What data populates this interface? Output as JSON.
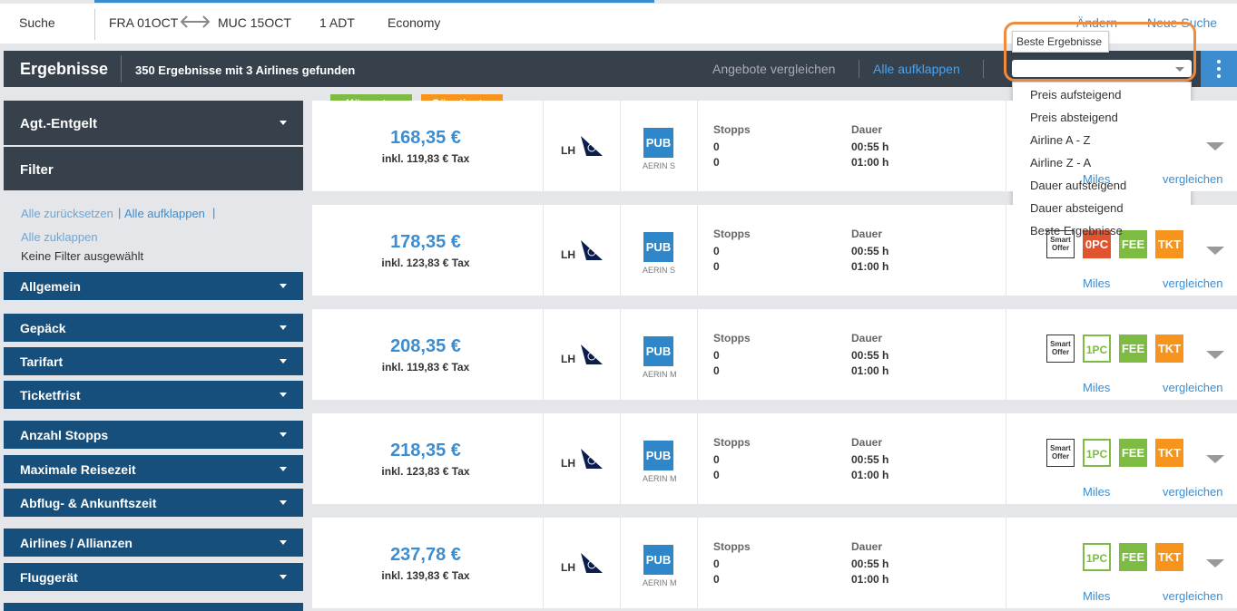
{
  "search_bar": {
    "label": "Suche",
    "origin": "FRA 01OCT",
    "destination": "MUC 15OCT",
    "passengers": "1 ADT",
    "cabin": "Economy",
    "change": "Ändern",
    "new_search": "Neue Suche"
  },
  "results_bar": {
    "title": "Ergebnisse",
    "summary": "350 Ergebnisse mit 3 Airlines gefunden",
    "compare": "Angebote vergleichen",
    "expand_all": "Alle aufklappen"
  },
  "sort": {
    "tooltip": "Beste Ergebnisse",
    "options": [
      "Preis aufsteigend",
      "Preis absteigend",
      "Airline A - Z",
      "Airline Z - A",
      "Dauer aufsteigend",
      "Dauer absteigend",
      "Beste Ergebnisse"
    ]
  },
  "sidebar": {
    "agent_fee": "Agt.-Entgelt",
    "filter": "Filter",
    "reset_all": "Alle zurücksetzen",
    "expand_all": "Alle aufklappen",
    "collapse_all": "Alle zuklappen",
    "no_filter": "Keine Filter ausgewählt",
    "groups": [
      "Allgemein",
      "Gepäck",
      "Tarifart",
      "Ticketfrist",
      "Anzahl Stopps",
      "Maximale Reisezeit",
      "Abflug- & Ankunftszeit",
      "Airlines / Allianzen",
      "Fluggerät"
    ]
  },
  "badges": {
    "shortest": "Kürzester",
    "cheapest": "Günstigster"
  },
  "results": [
    {
      "price": "168,35 €",
      "tax": "inkl. 119,83 € Tax",
      "airline": "LH",
      "fare_type": "PUB",
      "fare_name": "AERIN S",
      "stops_label": "Stopps",
      "stops": [
        "0",
        "0"
      ],
      "duration_label": "Dauer",
      "durations": [
        "00:55 h",
        "01:00 h"
      ],
      "icons": [],
      "miles": "Miles",
      "compare": "vergleichen"
    },
    {
      "price": "178,35 €",
      "tax": "inkl. 123,83 € Tax",
      "airline": "LH",
      "fare_type": "PUB",
      "fare_name": "AERIN S",
      "stops_label": "Stopps",
      "stops": [
        "0",
        "0"
      ],
      "duration_label": "Dauer",
      "durations": [
        "00:55 h",
        "01:00 h"
      ],
      "icons": [
        {
          "label": "Smart Offer",
          "color": "#333333",
          "filled": false
        },
        {
          "label": "0PC",
          "color": "#e0552f",
          "filled": true
        },
        {
          "label": "FEE",
          "color": "#7dbb42",
          "filled": true
        },
        {
          "label": "TKT",
          "color": "#f7941d",
          "filled": true
        }
      ],
      "miles": "Miles",
      "compare": "vergleichen"
    },
    {
      "price": "208,35 €",
      "tax": "inkl. 119,83 € Tax",
      "airline": "LH",
      "fare_type": "PUB",
      "fare_name": "AERIN M",
      "stops_label": "Stopps",
      "stops": [
        "0",
        "0"
      ],
      "duration_label": "Dauer",
      "durations": [
        "00:55 h",
        "01:00 h"
      ],
      "icons": [
        {
          "label": "Smart Offer",
          "color": "#333333",
          "filled": false
        },
        {
          "label": "1PC",
          "color": "#7dbb42",
          "filled": false
        },
        {
          "label": "FEE",
          "color": "#7dbb42",
          "filled": true
        },
        {
          "label": "TKT",
          "color": "#f7941d",
          "filled": true
        }
      ],
      "miles": "Miles",
      "compare": "vergleichen"
    },
    {
      "price": "218,35 €",
      "tax": "inkl. 123,83 € Tax",
      "airline": "LH",
      "fare_type": "PUB",
      "fare_name": "AERIN M",
      "stops_label": "Stopps",
      "stops": [
        "0",
        "0"
      ],
      "duration_label": "Dauer",
      "durations": [
        "00:55 h",
        "01:00 h"
      ],
      "icons": [
        {
          "label": "Smart Offer",
          "color": "#333333",
          "filled": false
        },
        {
          "label": "1PC",
          "color": "#7dbb42",
          "filled": false
        },
        {
          "label": "FEE",
          "color": "#7dbb42",
          "filled": true
        },
        {
          "label": "TKT",
          "color": "#f7941d",
          "filled": true
        }
      ],
      "miles": "Miles",
      "compare": "vergleichen"
    },
    {
      "price": "237,78 €",
      "tax": "inkl. 139,83 € Tax",
      "airline": "LH",
      "fare_type": "PUB",
      "fare_name": "AERIN M",
      "stops_label": "Stopps",
      "stops": [
        "0",
        "0"
      ],
      "duration_label": "Dauer",
      "durations": [
        "00:55 h",
        "01:00 h"
      ],
      "icons": [
        {
          "label": "1PC",
          "color": "#7dbb42",
          "filled": false
        },
        {
          "label": "FEE",
          "color": "#7dbb42",
          "filled": true
        },
        {
          "label": "TKT",
          "color": "#f7941d",
          "filled": true
        }
      ],
      "miles": "Miles",
      "compare": "vergleichen"
    }
  ]
}
